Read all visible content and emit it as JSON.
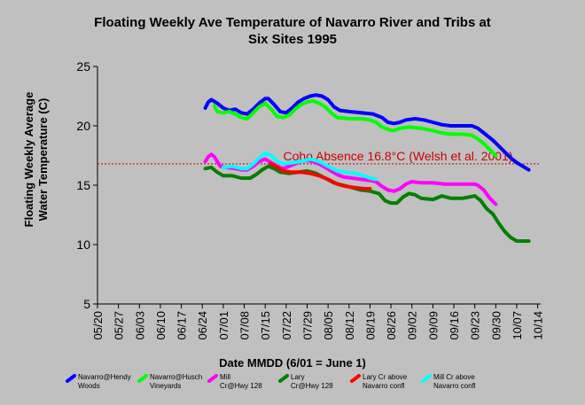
{
  "chart_data": {
    "type": "line",
    "title_line1": "Floating Weekly Ave Temperature of Navarro River and Tribs at",
    "title_line2": "Six Sites 1995",
    "xlabel": "Date MMDD (6/01 = June 1)",
    "ylabel_line1": "Floating Weekly Average",
    "ylabel_line2": "Water Temperature (C)",
    "ylim": [
      5,
      25
    ],
    "yticks": [
      5,
      10,
      15,
      20,
      25
    ],
    "x_range_days": [
      0,
      148
    ],
    "xticks": [
      {
        "label": "05/20",
        "day": 0
      },
      {
        "label": "05/27",
        "day": 7
      },
      {
        "label": "06/03",
        "day": 14
      },
      {
        "label": "06/10",
        "day": 21
      },
      {
        "label": "06/17",
        "day": 28
      },
      {
        "label": "06/24",
        "day": 35
      },
      {
        "label": "07/01",
        "day": 42
      },
      {
        "label": "07/08",
        "day": 49
      },
      {
        "label": "07/15",
        "day": 56
      },
      {
        "label": "07/22",
        "day": 63
      },
      {
        "label": "07/29",
        "day": 70
      },
      {
        "label": "08/05",
        "day": 77
      },
      {
        "label": "08/12",
        "day": 84
      },
      {
        "label": "08/19",
        "day": 91
      },
      {
        "label": "08/26",
        "day": 98
      },
      {
        "label": "09/02",
        "day": 105
      },
      {
        "label": "09/09",
        "day": 112
      },
      {
        "label": "09/16",
        "day": 119
      },
      {
        "label": "09/23",
        "day": 126
      },
      {
        "label": "09/30",
        "day": 133
      },
      {
        "label": "10/07",
        "day": 140
      },
      {
        "label": "10/14",
        "day": 147
      }
    ],
    "grid": false,
    "legend_position": "bottom",
    "threshold": {
      "value": 16.8,
      "label": "Coho Absence 16.8°C (Welsh et al. 2001)",
      "color": "#cc0000"
    },
    "series": [
      {
        "name": "Navarro@Hendy Woods",
        "color": "#0000ff",
        "points": [
          [
            36,
            21.5
          ],
          [
            37,
            22.0
          ],
          [
            38,
            22.2
          ],
          [
            40,
            21.9
          ],
          [
            42,
            21.5
          ],
          [
            44,
            21.3
          ],
          [
            46,
            21.4
          ],
          [
            48,
            21.1
          ],
          [
            50,
            21.0
          ],
          [
            52,
            21.4
          ],
          [
            54,
            21.9
          ],
          [
            56,
            22.3
          ],
          [
            57,
            22.3
          ],
          [
            59,
            21.8
          ],
          [
            61,
            21.2
          ],
          [
            63,
            21.1
          ],
          [
            65,
            21.5
          ],
          [
            67,
            22.0
          ],
          [
            69,
            22.3
          ],
          [
            71,
            22.5
          ],
          [
            73,
            22.6
          ],
          [
            75,
            22.5
          ],
          [
            77,
            22.2
          ],
          [
            79,
            21.6
          ],
          [
            81,
            21.3
          ],
          [
            84,
            21.2
          ],
          [
            88,
            21.1
          ],
          [
            92,
            21.0
          ],
          [
            95,
            20.7
          ],
          [
            97,
            20.3
          ],
          [
            99,
            20.2
          ],
          [
            101,
            20.3
          ],
          [
            103,
            20.5
          ],
          [
            106,
            20.6
          ],
          [
            109,
            20.5
          ],
          [
            112,
            20.3
          ],
          [
            115,
            20.1
          ],
          [
            118,
            20.0
          ],
          [
            122,
            20.0
          ],
          [
            125,
            20.0
          ],
          [
            127,
            19.8
          ],
          [
            129,
            19.4
          ],
          [
            132,
            18.8
          ],
          [
            134,
            18.3
          ],
          [
            136,
            17.8
          ],
          [
            138,
            17.3
          ],
          [
            140,
            16.9
          ],
          [
            142,
            16.6
          ],
          [
            144,
            16.3
          ]
        ]
      },
      {
        "name": "Navarro@Husch Vineyards",
        "color": "#00ff00",
        "points": [
          [
            39,
            21.7
          ],
          [
            40,
            21.2
          ],
          [
            42,
            21.1
          ],
          [
            44,
            21.2
          ],
          [
            46,
            21.0
          ],
          [
            48,
            20.7
          ],
          [
            50,
            20.6
          ],
          [
            52,
            21.1
          ],
          [
            54,
            21.6
          ],
          [
            56,
            21.9
          ],
          [
            58,
            21.4
          ],
          [
            60,
            20.8
          ],
          [
            62,
            20.7
          ],
          [
            64,
            20.9
          ],
          [
            66,
            21.4
          ],
          [
            68,
            21.8
          ],
          [
            70,
            22.0
          ],
          [
            72,
            22.1
          ],
          [
            74,
            21.9
          ],
          [
            76,
            21.6
          ],
          [
            78,
            21.1
          ],
          [
            80,
            20.7
          ],
          [
            84,
            20.6
          ],
          [
            88,
            20.6
          ],
          [
            91,
            20.5
          ],
          [
            93,
            20.3
          ],
          [
            95,
            19.9
          ],
          [
            97,
            19.7
          ],
          [
            99,
            19.6
          ],
          [
            101,
            19.8
          ],
          [
            104,
            19.9
          ],
          [
            108,
            19.8
          ],
          [
            112,
            19.6
          ],
          [
            115,
            19.4
          ],
          [
            118,
            19.3
          ],
          [
            122,
            19.3
          ],
          [
            125,
            19.2
          ],
          [
            127,
            18.9
          ],
          [
            129,
            18.5
          ],
          [
            131,
            18.0
          ],
          [
            133,
            17.5
          ]
        ]
      },
      {
        "name": "Mill Cr@Hwy 128",
        "color": "#ff00ff",
        "points": [
          [
            36,
            17.0
          ],
          [
            37,
            17.4
          ],
          [
            38,
            17.6
          ],
          [
            39,
            17.4
          ],
          [
            40,
            17.0
          ],
          [
            41,
            16.6
          ],
          [
            43,
            16.5
          ],
          [
            46,
            16.4
          ],
          [
            48,
            16.3
          ],
          [
            50,
            16.3
          ],
          [
            52,
            16.6
          ],
          [
            54,
            17.0
          ],
          [
            56,
            17.2
          ],
          [
            58,
            16.9
          ],
          [
            60,
            16.6
          ],
          [
            62,
            16.4
          ],
          [
            64,
            16.6
          ],
          [
            66,
            16.8
          ],
          [
            68,
            17.0
          ],
          [
            70,
            17.1
          ],
          [
            72,
            17.0
          ],
          [
            74,
            16.8
          ],
          [
            76,
            16.5
          ],
          [
            78,
            16.2
          ],
          [
            80,
            15.9
          ],
          [
            82,
            15.7
          ],
          [
            85,
            15.6
          ],
          [
            88,
            15.5
          ],
          [
            91,
            15.4
          ],
          [
            93,
            15.3
          ],
          [
            95,
            14.9
          ],
          [
            97,
            14.6
          ],
          [
            99,
            14.5
          ],
          [
            101,
            14.7
          ],
          [
            103,
            15.1
          ],
          [
            105,
            15.3
          ],
          [
            108,
            15.2
          ],
          [
            112,
            15.2
          ],
          [
            116,
            15.1
          ],
          [
            120,
            15.1
          ],
          [
            124,
            15.1
          ],
          [
            126,
            15.1
          ],
          [
            127,
            15.0
          ],
          [
            129,
            14.6
          ],
          [
            131,
            13.9
          ],
          [
            133,
            13.4
          ]
        ]
      },
      {
        "name": "Lary Cr@Hwy 128",
        "color": "#008000",
        "points": [
          [
            36,
            16.4
          ],
          [
            38,
            16.5
          ],
          [
            40,
            16.1
          ],
          [
            42,
            15.8
          ],
          [
            45,
            15.8
          ],
          [
            48,
            15.6
          ],
          [
            51,
            15.6
          ],
          [
            53,
            15.9
          ],
          [
            55,
            16.3
          ],
          [
            57,
            16.6
          ],
          [
            59,
            16.4
          ],
          [
            61,
            16.1
          ],
          [
            64,
            16.0
          ],
          [
            67,
            16.1
          ],
          [
            70,
            16.2
          ],
          [
            73,
            16.0
          ],
          [
            76,
            15.6
          ],
          [
            79,
            15.2
          ],
          [
            82,
            15.0
          ],
          [
            85,
            14.8
          ],
          [
            88,
            14.6
          ],
          [
            91,
            14.5
          ],
          [
            94,
            14.3
          ],
          [
            96,
            13.7
          ],
          [
            98,
            13.5
          ],
          [
            100,
            13.5
          ],
          [
            102,
            14.0
          ],
          [
            104,
            14.3
          ],
          [
            106,
            14.2
          ],
          [
            108,
            13.9
          ],
          [
            112,
            13.8
          ],
          [
            115,
            14.1
          ],
          [
            118,
            13.9
          ],
          [
            122,
            13.9
          ],
          [
            124,
            14.0
          ],
          [
            126,
            14.1
          ],
          [
            128,
            13.7
          ],
          [
            130,
            13.0
          ],
          [
            132,
            12.6
          ],
          [
            134,
            11.8
          ],
          [
            136,
            11.1
          ],
          [
            138,
            10.6
          ],
          [
            140,
            10.3
          ],
          [
            142,
            10.3
          ],
          [
            144,
            10.3
          ]
        ]
      },
      {
        "name": "Lary Cr above Navarro confl",
        "color": "#ff0000",
        "points": [
          [
            58,
            16.8
          ],
          [
            60,
            16.5
          ],
          [
            62,
            16.2
          ],
          [
            65,
            16.1
          ],
          [
            68,
            16.1
          ],
          [
            71,
            16.0
          ],
          [
            74,
            15.8
          ],
          [
            77,
            15.5
          ],
          [
            80,
            15.1
          ],
          [
            83,
            14.9
          ],
          [
            86,
            14.8
          ],
          [
            89,
            14.7
          ],
          [
            91,
            14.7
          ]
        ]
      },
      {
        "name": "Mill Cr above Navarro confl",
        "color": "#00ffff",
        "points": [
          [
            42,
            16.5
          ],
          [
            45,
            16.6
          ],
          [
            48,
            16.4
          ],
          [
            50,
            16.4
          ],
          [
            52,
            16.8
          ],
          [
            54,
            17.3
          ],
          [
            56,
            17.7
          ],
          [
            58,
            17.5
          ],
          [
            60,
            17.0
          ],
          [
            62,
            16.8
          ],
          [
            65,
            16.9
          ],
          [
            68,
            17.0
          ],
          [
            71,
            17.2
          ],
          [
            74,
            17.0
          ],
          [
            77,
            16.6
          ],
          [
            80,
            16.2
          ],
          [
            83,
            16.1
          ],
          [
            86,
            16.0
          ],
          [
            89,
            15.8
          ],
          [
            91,
            15.6
          ],
          [
            93,
            15.5
          ]
        ]
      }
    ]
  }
}
